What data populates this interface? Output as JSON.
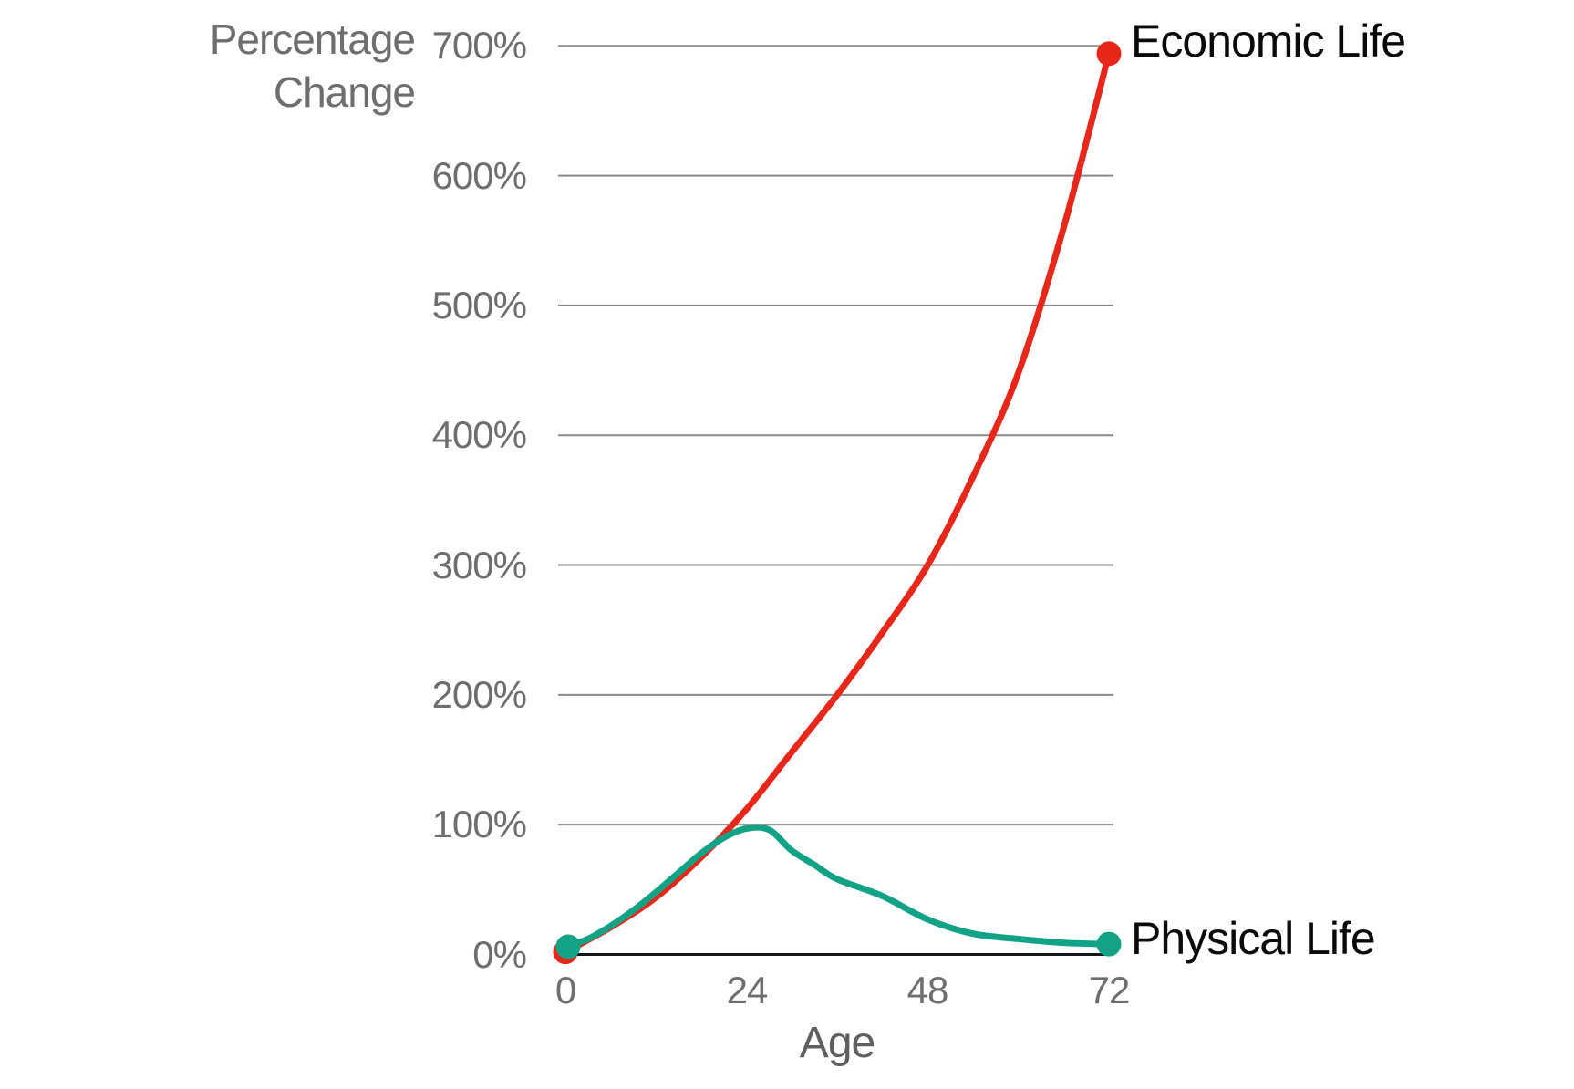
{
  "chart": {
    "y_axis_title_line1": "Percentage",
    "y_axis_title_line2": "Change",
    "x_axis_title": "Age"
  },
  "chart_data": {
    "type": "line",
    "title": "",
    "xlabel": "Age",
    "ylabel": "Percentage Change",
    "xlim": [
      0,
      72
    ],
    "ylim": [
      0,
      700
    ],
    "grid": "horizontal",
    "legend_position": "end-of-line-labels",
    "y_ticks_percent": [
      0,
      100,
      200,
      300,
      400,
      500,
      600,
      700
    ],
    "y_tick_labels": [
      "700%",
      "600%",
      "500%",
      "400%",
      "300%",
      "200%",
      "100%",
      "0%"
    ],
    "x_ticks": [
      0,
      24,
      48,
      72
    ],
    "x_tick_labels": [
      "0",
      "24",
      "48",
      "72"
    ],
    "colors": {
      "grid": "#8a8a8a",
      "axis_line": "#161616",
      "tick_text": "#6e6e6e",
      "label_text": "#0a0a0a"
    },
    "series": [
      {
        "name": "Economic Life",
        "color": "#e8271b",
        "endpoint_dots": true,
        "x": [
          0,
          6,
          12,
          18,
          24,
          30,
          36,
          42,
          48,
          54,
          60,
          66,
          72
        ],
        "values": [
          2,
          21,
          44,
          75,
          112,
          156,
          200,
          248,
          300,
          368,
          448,
          560,
          694
        ]
      },
      {
        "name": "Physical Life",
        "color": "#12a286",
        "endpoint_dots": true,
        "x": [
          0,
          3,
          6,
          9,
          12,
          15,
          18,
          21,
          24,
          27,
          30,
          33,
          36,
          42,
          48,
          54,
          60,
          66,
          72
        ],
        "values": [
          6,
          12,
          22,
          34,
          48,
          63,
          78,
          90,
          97,
          96,
          80,
          69,
          58,
          45,
          27,
          16,
          12,
          9,
          8
        ]
      }
    ]
  }
}
